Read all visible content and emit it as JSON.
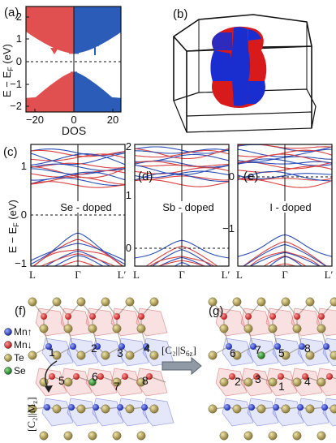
{
  "panel_a": {
    "label": "(a)",
    "ylabel": "E − E",
    "ylabel_sub": "F",
    "ylabel_unit": " (eV)",
    "xlabel": "DOS",
    "xticks": [
      "−20",
      "0",
      "20"
    ],
    "yticks": [
      "2",
      "1",
      "0",
      "−1",
      "−2"
    ],
    "colors": {
      "down": "#e05050",
      "up": "#2a5cb8"
    }
  },
  "panel_b": {
    "label": "(b)"
  },
  "panel_c": {
    "label": "(c)",
    "dopant_text": "Se - doped",
    "yticks": [
      "1",
      "0",
      "−1"
    ],
    "kpoints": [
      "L",
      "Γ",
      "L′"
    ]
  },
  "panel_d": {
    "label": "(d)",
    "dopant_text": "Sb - doped",
    "yticks": [
      "2",
      "1",
      "0"
    ],
    "kpoints": [
      "L",
      "Γ",
      "L′"
    ]
  },
  "panel_e": {
    "label": "(e)",
    "dopant_text": "I - doped",
    "yticks": [
      "0",
      "−1"
    ],
    "kpoints": [
      "L",
      "Γ",
      "L′"
    ]
  },
  "bands_ylabel": {
    "main": "E − E",
    "sub": "F",
    "unit": " (eV)"
  },
  "panel_f": {
    "label": "(f)",
    "legend": [
      {
        "name": "Mn↑",
        "color": "#2a3fc9"
      },
      {
        "name": "Mn↓",
        "color": "#d42a2a"
      },
      {
        "name": "Te",
        "color": "#b5a461"
      },
      {
        "name": "Se",
        "color": "#2a9a3a"
      }
    ],
    "site_numbers": [
      "1",
      "2",
      "3",
      "4",
      "5",
      "6",
      "7",
      "8"
    ],
    "mirror_op": "[C₂||M",
    "mirror_sub": "z",
    "mirror_close": "]"
  },
  "panel_g": {
    "label": "(g)",
    "site_numbers": [
      "6",
      "7",
      "5",
      "8",
      "2",
      "3",
      "1",
      "4"
    ]
  },
  "arrow_op": {
    "main": "[C₂||S",
    "sub": "6z",
    "close": "]"
  }
}
